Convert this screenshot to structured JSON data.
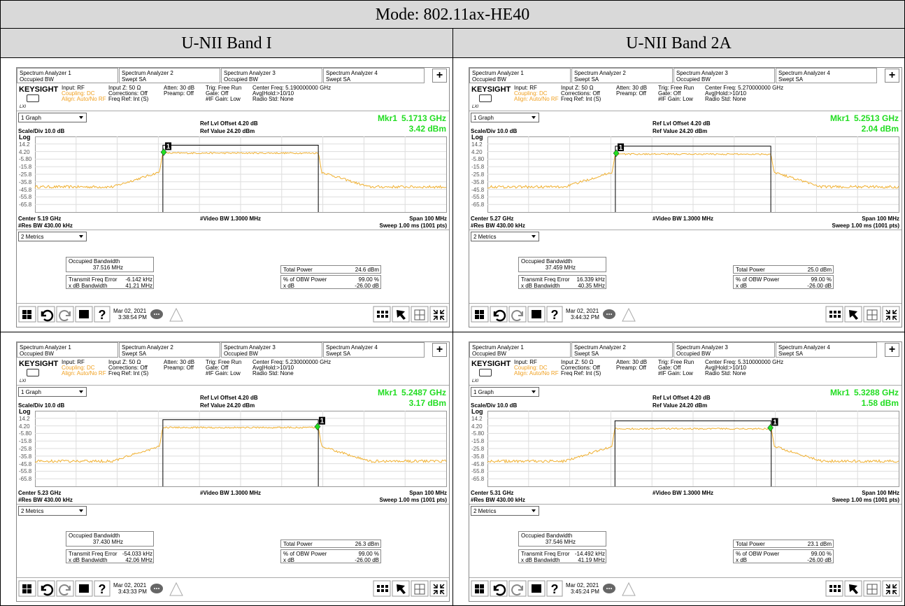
{
  "title": "Mode: 802.11ax-HE40",
  "columns": [
    "U-NII Band I",
    "U-NII Band 2A"
  ],
  "common": {
    "tabs": [
      [
        "Spectrum Analyzer 1",
        "Occupied BW"
      ],
      [
        "Spectrum Analyzer 2",
        "Swept SA"
      ],
      [
        "Spectrum Analyzer 3",
        "Occupied BW"
      ],
      [
        "Spectrum Analyzer 4",
        "Swept SA"
      ]
    ],
    "plus": "+",
    "brand": "KEYSIGHT",
    "lxi": "LXI",
    "info_col1": [
      "Input: RF",
      "Coupling: DC",
      "Align: Auto/No RF"
    ],
    "info_col2": [
      "Input Z: 50 Ω",
      "Corrections: Off",
      "Freq Ref: Int (S)"
    ],
    "info_col3": [
      "Atten: 30 dB",
      "Preamp: Off"
    ],
    "info_col4": [
      "Trig: Free Run",
      "Gate: Off",
      "#IF Gain: Low"
    ],
    "info_col5_rest": [
      "Avg|Hold:>10/10",
      "Radio Std: None"
    ],
    "graph_menu": "1 Graph",
    "ref_offset": "Ref Lvl Offset 4.20 dB",
    "scale_div": "Scale/Div 10.0 dB",
    "ref_value": "Ref Value 24.20 dBm",
    "y_labels": [
      "Log",
      "14.2",
      "4.20",
      "-5.80",
      "-15.8",
      "-25.8",
      "-35.8",
      "-45.8",
      "-55.8",
      "-65.8"
    ],
    "video_bw": "#Video BW 1.3000 MHz",
    "span": "Span 100 MHz",
    "res_bw": "#Res BW 430.00 kHz",
    "sweep": "Sweep 1.00 ms (1001 pts)",
    "metrics_menu": "2 Metrics",
    "metric_labels": {
      "obw": "Occupied Bandwidth",
      "tfe": "Transmit Freq Error",
      "xdb_bw": "x dB Bandwidth",
      "total_power": "Total Power",
      "obw_power": "% of OBW Power",
      "xdb": "x dB"
    },
    "obw_power_value": "99.00 %",
    "xdb_value": "-26.00 dB",
    "help": "?",
    "mkr_label": "Mkr1",
    "marker_tag": "1"
  },
  "panels": [
    {
      "center_freq": "Center Freq: 5.190000000 GHz",
      "mkr_freq": "5.1713 GHz",
      "mkr_value": "3.42 dBm",
      "center": "Center 5.19 GHz",
      "obw": "37.516 MHz",
      "tfe": "-6.142 kHz",
      "xdb_bw": "41.21 MHz",
      "total_power": "24.6 dBm",
      "date": "Mar 02, 2021",
      "time": "3:38:54 PM"
    },
    {
      "center_freq": "Center Freq: 5.270000000 GHz",
      "mkr_freq": "5.2513 GHz",
      "mkr_value": "2.04 dBm",
      "center": "Center 5.27 GHz",
      "obw": "37.459 MHz",
      "tfe": "16.339 kHz",
      "xdb_bw": "40.35 MHz",
      "total_power": "25.0 dBm",
      "date": "Mar 02, 2021",
      "time": "3:44:32 PM"
    },
    {
      "center_freq": "Center Freq: 5.230000000 GHz",
      "mkr_freq": "5.2487 GHz",
      "mkr_value": "3.17 dBm",
      "center": "Center 5.23 GHz",
      "obw": "37.430 MHz",
      "tfe": "-54.033 kHz",
      "xdb_bw": "42.06 MHz",
      "total_power": "26.3 dBm",
      "date": "Mar 02, 2021",
      "time": "3:43:33 PM"
    },
    {
      "center_freq": "Center Freq: 5.310000000 GHz",
      "mkr_freq": "5.3288 GHz",
      "mkr_value": "1.58 dBm",
      "center": "Center 5.31 GHz",
      "obw": "37.546 MHz",
      "tfe": "-14.492 kHz",
      "xdb_bw": "41.19 MHz",
      "total_power": "23.1 dBm",
      "date": "Mar 02, 2021",
      "time": "3:45:24 PM"
    }
  ]
}
